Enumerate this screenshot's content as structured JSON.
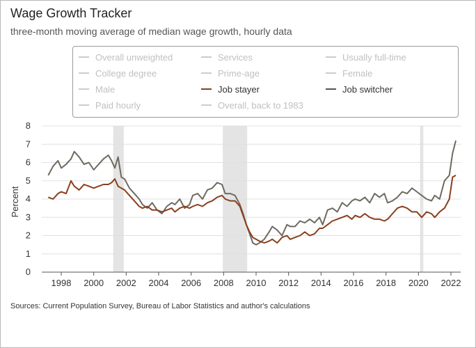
{
  "title": "Wage Growth Tracker",
  "subtitle": "three-month moving average of median wage growth, hourly data",
  "source": "Sources: Current Population Survey, Bureau of Labor Statistics and author's calculations",
  "legend": [
    {
      "label": "Overall unweighted",
      "active": false
    },
    {
      "label": "Services",
      "active": false
    },
    {
      "label": "Usually full-time",
      "active": false
    },
    {
      "label": "College degree",
      "active": false
    },
    {
      "label": "Prime-age",
      "active": false
    },
    {
      "label": "Female",
      "active": false
    },
    {
      "label": "Male",
      "active": false
    },
    {
      "label": "Job stayer",
      "active": true,
      "color": "#8b3e1b"
    },
    {
      "label": "Job switcher",
      "active": true,
      "color": "#555555"
    },
    {
      "label": "Paid hourly",
      "active": false
    },
    {
      "label": "Overall, back to 1983",
      "active": false
    }
  ],
  "chart_data": {
    "type": "line",
    "title": "Wage Growth Tracker",
    "ylabel": "Percent",
    "xlabel": "",
    "xlim": [
      1996.8,
      2022.6
    ],
    "ylim": [
      0,
      8
    ],
    "yticks": [
      "0",
      "1",
      "2",
      "3",
      "4",
      "5",
      "6",
      "7",
      "8"
    ],
    "xticks": [
      "1998",
      "2000",
      "2002",
      "2004",
      "2006",
      "2008",
      "2010",
      "2012",
      "2014",
      "2016",
      "2018",
      "2020",
      "2022"
    ],
    "grid": true,
    "recessions": [
      [
        2001.2,
        2001.85
      ],
      [
        2007.95,
        2009.45
      ],
      [
        2020.1,
        2020.3
      ]
    ],
    "series": [
      {
        "name": "Job switcher",
        "color": "#6e6a60",
        "x": [
          1997.2,
          1997.5,
          1997.8,
          1998.0,
          1998.3,
          1998.6,
          1998.8,
          1999.1,
          1999.4,
          1999.7,
          2000.0,
          2000.3,
          2000.6,
          2000.9,
          2001.1,
          2001.3,
          2001.5,
          2001.7,
          2001.9,
          2002.2,
          2002.5,
          2002.8,
          2003.0,
          2003.3,
          2003.6,
          2003.9,
          2004.2,
          2004.5,
          2004.8,
          2005.0,
          2005.3,
          2005.6,
          2005.9,
          2006.1,
          2006.4,
          2006.7,
          2007.0,
          2007.3,
          2007.6,
          2007.9,
          2008.1,
          2008.4,
          2008.7,
          2009.0,
          2009.2,
          2009.4,
          2009.6,
          2009.8,
          2010.0,
          2010.2,
          2010.5,
          2010.8,
          2011.0,
          2011.3,
          2011.6,
          2011.9,
          2012.1,
          2012.4,
          2012.7,
          2013.0,
          2013.3,
          2013.6,
          2013.9,
          2014.1,
          2014.4,
          2014.7,
          2015.0,
          2015.3,
          2015.6,
          2015.9,
          2016.1,
          2016.4,
          2016.7,
          2017.0,
          2017.3,
          2017.6,
          2017.9,
          2018.1,
          2018.4,
          2018.7,
          2019.0,
          2019.3,
          2019.6,
          2019.9,
          2020.2,
          2020.5,
          2020.8,
          2021.0,
          2021.3,
          2021.6,
          2021.9,
          2022.1,
          2022.3
        ],
        "y": [
          5.3,
          5.8,
          6.1,
          5.7,
          5.9,
          6.2,
          6.6,
          6.3,
          5.9,
          6.0,
          5.6,
          5.9,
          6.2,
          6.4,
          6.1,
          5.7,
          6.3,
          5.2,
          5.1,
          4.6,
          4.3,
          4.0,
          3.7,
          3.5,
          3.8,
          3.4,
          3.2,
          3.6,
          3.8,
          3.7,
          4.0,
          3.5,
          3.7,
          4.2,
          4.3,
          4.0,
          4.5,
          4.6,
          4.9,
          4.8,
          4.3,
          4.3,
          4.2,
          3.7,
          3.2,
          2.6,
          2.1,
          1.6,
          1.5,
          1.6,
          1.8,
          2.2,
          2.5,
          2.3,
          2.0,
          2.6,
          2.5,
          2.5,
          2.8,
          2.7,
          2.9,
          2.7,
          3.0,
          2.6,
          3.4,
          3.5,
          3.3,
          3.8,
          3.6,
          3.9,
          4.0,
          3.9,
          4.1,
          3.8,
          4.3,
          4.1,
          4.3,
          3.8,
          3.9,
          4.1,
          4.4,
          4.3,
          4.6,
          4.4,
          4.2,
          4.0,
          3.9,
          4.2,
          4.0,
          5.0,
          5.3,
          6.5,
          7.2
        ]
      },
      {
        "name": "Job stayer",
        "color": "#8b3e1b",
        "x": [
          1997.2,
          1997.5,
          1997.8,
          1998.0,
          1998.3,
          1998.6,
          1998.8,
          1999.1,
          1999.4,
          1999.7,
          2000.0,
          2000.3,
          2000.6,
          2000.9,
          2001.1,
          2001.3,
          2001.5,
          2001.7,
          2001.9,
          2002.2,
          2002.5,
          2002.8,
          2003.0,
          2003.3,
          2003.6,
          2003.9,
          2004.2,
          2004.5,
          2004.8,
          2005.0,
          2005.3,
          2005.6,
          2005.9,
          2006.1,
          2006.4,
          2006.7,
          2007.0,
          2007.3,
          2007.6,
          2007.9,
          2008.1,
          2008.4,
          2008.7,
          2009.0,
          2009.2,
          2009.4,
          2009.6,
          2009.8,
          2010.0,
          2010.2,
          2010.5,
          2010.8,
          2011.0,
          2011.3,
          2011.6,
          2011.9,
          2012.1,
          2012.4,
          2012.7,
          2013.0,
          2013.3,
          2013.6,
          2013.9,
          2014.1,
          2014.4,
          2014.7,
          2015.0,
          2015.3,
          2015.6,
          2015.9,
          2016.1,
          2016.4,
          2016.7,
          2017.0,
          2017.3,
          2017.6,
          2017.9,
          2018.1,
          2018.4,
          2018.7,
          2019.0,
          2019.3,
          2019.6,
          2019.9,
          2020.2,
          2020.5,
          2020.8,
          2021.0,
          2021.3,
          2021.6,
          2021.9,
          2022.1,
          2022.3
        ],
        "y": [
          4.1,
          4.0,
          4.3,
          4.4,
          4.3,
          5.0,
          4.7,
          4.5,
          4.8,
          4.7,
          4.6,
          4.7,
          4.8,
          4.8,
          4.9,
          5.1,
          4.7,
          4.6,
          4.5,
          4.2,
          3.9,
          3.6,
          3.5,
          3.6,
          3.4,
          3.4,
          3.3,
          3.4,
          3.5,
          3.3,
          3.5,
          3.6,
          3.5,
          3.6,
          3.7,
          3.6,
          3.8,
          3.9,
          4.1,
          4.2,
          4.0,
          3.9,
          3.9,
          3.6,
          3.1,
          2.6,
          2.2,
          1.9,
          1.8,
          1.7,
          1.6,
          1.7,
          1.8,
          1.6,
          1.9,
          2.0,
          1.8,
          1.9,
          2.0,
          2.2,
          2.0,
          2.1,
          2.4,
          2.4,
          2.6,
          2.8,
          2.9,
          3.0,
          3.1,
          2.9,
          3.1,
          3.0,
          3.2,
          3.0,
          2.9,
          2.9,
          2.8,
          2.9,
          3.2,
          3.5,
          3.6,
          3.5,
          3.3,
          3.3,
          3.0,
          3.3,
          3.2,
          3.0,
          3.3,
          3.5,
          4.0,
          5.2,
          5.3
        ]
      }
    ]
  }
}
